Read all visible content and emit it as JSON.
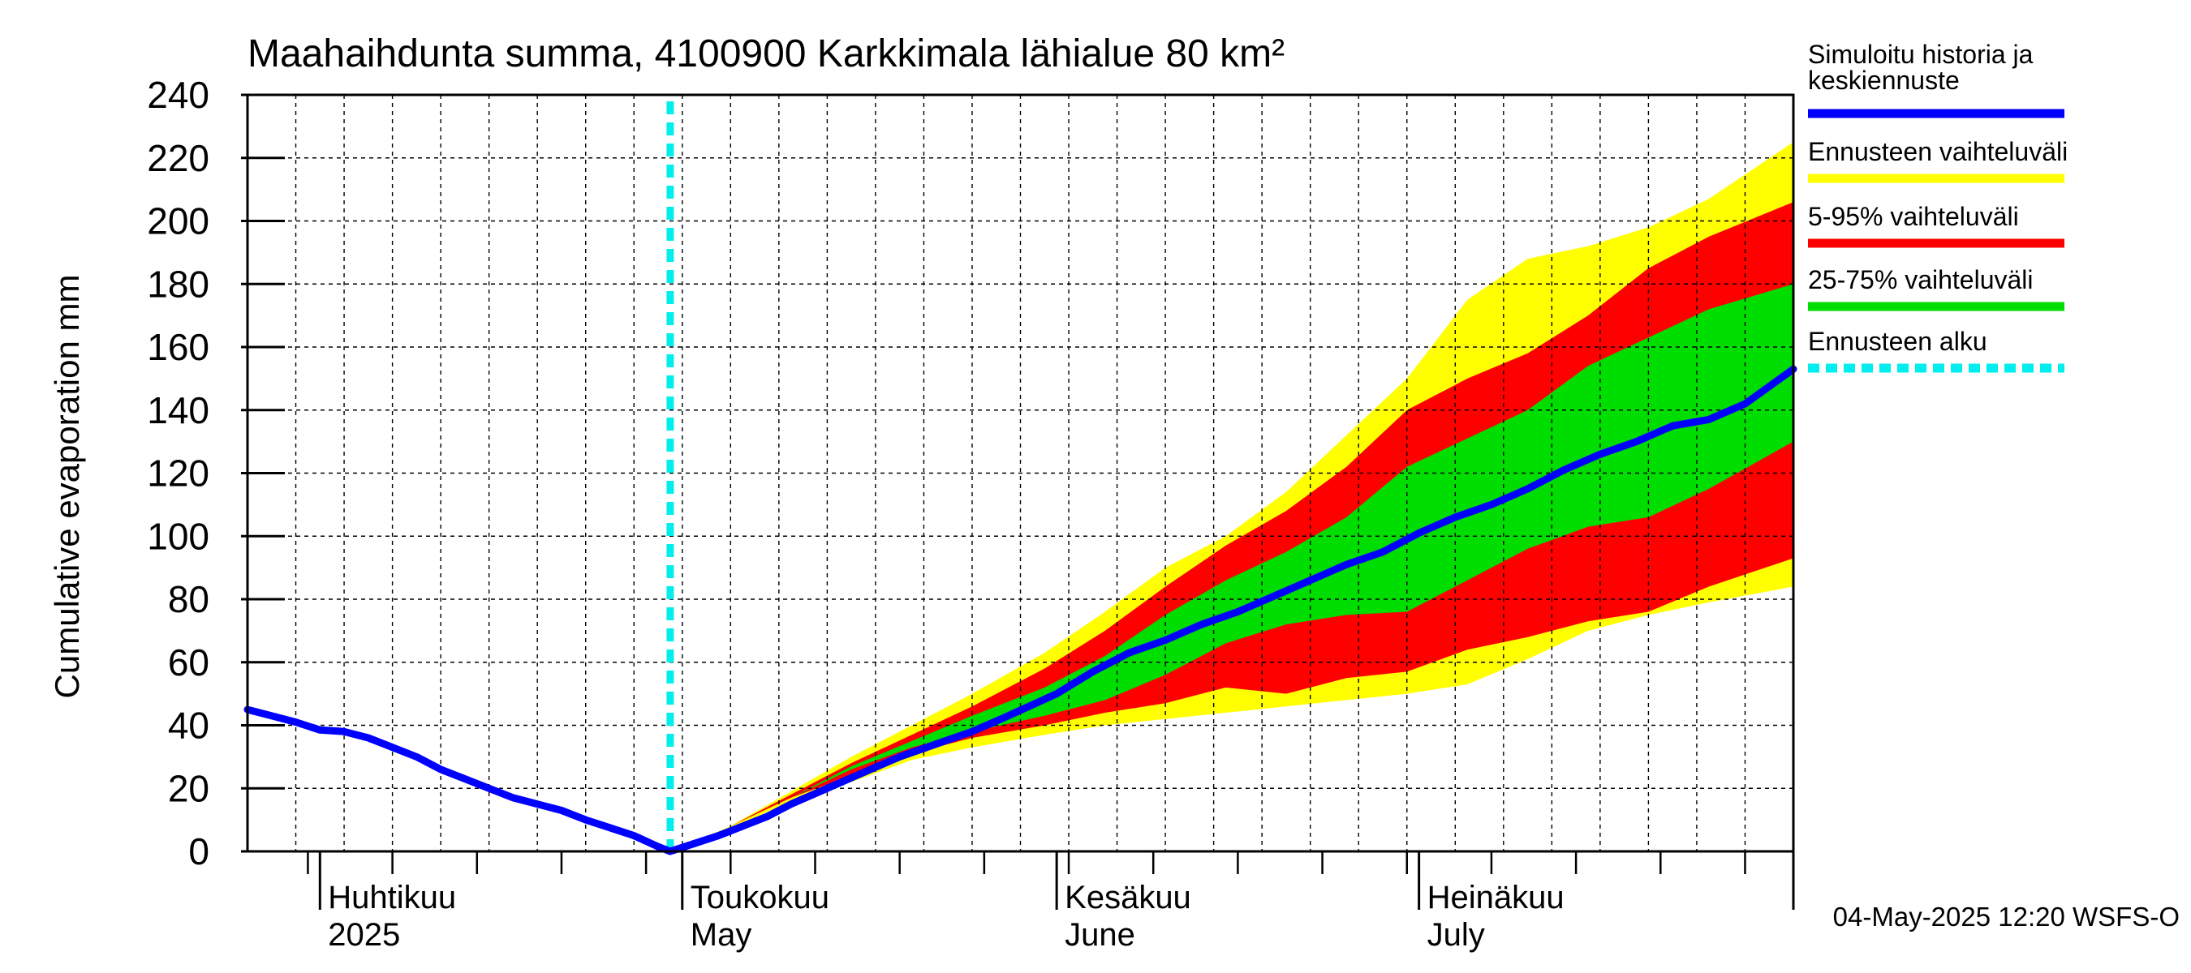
{
  "chart_data": {
    "type": "area",
    "title": "Maahaihdunta summa, 4100900 Karkkimala lähialue 80 km²",
    "ylabel": "Cumulative evaporation   mm",
    "xlabel": "",
    "ylim": [
      0,
      240
    ],
    "yticks": [
      0,
      20,
      40,
      60,
      80,
      100,
      120,
      140,
      160,
      180,
      200,
      220,
      240
    ],
    "xlim": [
      "2025-03-26",
      "2025-08-01"
    ],
    "grid": true,
    "legend_position": "right",
    "month_labels": [
      {
        "date": "2025-04-01",
        "fi": "Huhtikuu",
        "en": "2025"
      },
      {
        "date": "2025-05-01",
        "fi": "Toukokuu",
        "en": "May"
      },
      {
        "date": "2025-06-01",
        "fi": "Kesäkuu",
        "en": "June"
      },
      {
        "date": "2025-07-01",
        "fi": "Heinäkuu",
        "en": "July"
      }
    ],
    "forecast_start": "2025-04-30",
    "footer": "04-May-2025 12:20 WSFS-O",
    "legend": [
      {
        "label": "Simuloitu historia ja\nkeskiennuste",
        "color": "#0000ff",
        "style": "solid"
      },
      {
        "label": "Ennusteen vaihteluväli",
        "color": "#ffff00",
        "style": "solid"
      },
      {
        "label": "5-95% vaihteluväli",
        "color": "#ff0000",
        "style": "solid"
      },
      {
        "label": "25-75% vaihteluväli",
        "color": "#00dd00",
        "style": "solid"
      },
      {
        "label": "Ennusteen alku",
        "color": "#00eeee",
        "style": "dashed"
      }
    ],
    "series": [
      {
        "name": "Simuloitu historia ja keskiennuste",
        "color": "#0000ff",
        "points": [
          [
            "2025-03-26",
            45
          ],
          [
            "2025-03-28",
            43
          ],
          [
            "2025-03-30",
            41
          ],
          [
            "2025-04-01",
            38.5
          ],
          [
            "2025-04-03",
            38
          ],
          [
            "2025-04-05",
            36
          ],
          [
            "2025-04-07",
            33
          ],
          [
            "2025-04-09",
            30
          ],
          [
            "2025-04-11",
            26
          ],
          [
            "2025-04-13",
            23
          ],
          [
            "2025-04-15",
            20
          ],
          [
            "2025-04-17",
            17
          ],
          [
            "2025-04-19",
            15
          ],
          [
            "2025-04-21",
            13
          ],
          [
            "2025-04-23",
            10
          ],
          [
            "2025-04-25",
            7.5
          ],
          [
            "2025-04-27",
            5
          ],
          [
            "2025-04-29",
            1.5
          ],
          [
            "2025-04-30",
            0
          ],
          [
            "2025-05-02",
            2.5
          ],
          [
            "2025-05-04",
            5
          ],
          [
            "2025-05-06",
            8
          ],
          [
            "2025-05-08",
            11
          ],
          [
            "2025-05-10",
            15
          ],
          [
            "2025-05-13",
            20
          ],
          [
            "2025-05-16",
            25
          ],
          [
            "2025-05-19",
            30
          ],
          [
            "2025-05-22",
            34
          ],
          [
            "2025-05-25",
            38
          ],
          [
            "2025-05-28",
            43
          ],
          [
            "2025-06-01",
            50
          ],
          [
            "2025-06-04",
            57
          ],
          [
            "2025-06-07",
            63
          ],
          [
            "2025-06-10",
            67
          ],
          [
            "2025-06-13",
            72
          ],
          [
            "2025-06-16",
            76
          ],
          [
            "2025-06-19",
            81
          ],
          [
            "2025-06-22",
            86
          ],
          [
            "2025-06-25",
            91
          ],
          [
            "2025-06-28",
            95
          ],
          [
            "2025-07-01",
            101
          ],
          [
            "2025-07-04",
            106
          ],
          [
            "2025-07-07",
            110
          ],
          [
            "2025-07-10",
            115
          ],
          [
            "2025-07-13",
            121
          ],
          [
            "2025-07-16",
            126
          ],
          [
            "2025-07-19",
            130
          ],
          [
            "2025-07-22",
            135
          ],
          [
            "2025-07-25",
            137
          ],
          [
            "2025-07-28",
            142
          ],
          [
            "2025-08-01",
            153
          ]
        ]
      }
    ],
    "bands": [
      {
        "name": "Ennusteen vaihteluväli",
        "color": "#ffff00",
        "points": [
          [
            "2025-04-30",
            0,
            0
          ],
          [
            "2025-05-05",
            7,
            8
          ],
          [
            "2025-05-10",
            16,
            19
          ],
          [
            "2025-05-15",
            22,
            30
          ],
          [
            "2025-05-20",
            29,
            40
          ],
          [
            "2025-05-25",
            33,
            50
          ],
          [
            "2025-05-31",
            37,
            63
          ],
          [
            "2025-06-05",
            40,
            76
          ],
          [
            "2025-06-10",
            42,
            90
          ],
          [
            "2025-06-15",
            44,
            100
          ],
          [
            "2025-06-20",
            46,
            114
          ],
          [
            "2025-06-25",
            48,
            132
          ],
          [
            "2025-06-30",
            50,
            150
          ],
          [
            "2025-07-05",
            53,
            175
          ],
          [
            "2025-07-10",
            61,
            188
          ],
          [
            "2025-07-15",
            70,
            192
          ],
          [
            "2025-07-20",
            75,
            198
          ],
          [
            "2025-07-25",
            79,
            207
          ],
          [
            "2025-08-01",
            84,
            225
          ]
        ]
      },
      {
        "name": "5-95% vaihteluväli",
        "color": "#ff0000",
        "points": [
          [
            "2025-04-30",
            0,
            0
          ],
          [
            "2025-05-05",
            8,
            8
          ],
          [
            "2025-05-10",
            17,
            18
          ],
          [
            "2025-05-15",
            24,
            28
          ],
          [
            "2025-05-20",
            31,
            37
          ],
          [
            "2025-05-25",
            36,
            46
          ],
          [
            "2025-05-31",
            40,
            58
          ],
          [
            "2025-06-05",
            44,
            70
          ],
          [
            "2025-06-10",
            47,
            84
          ],
          [
            "2025-06-15",
            52,
            97
          ],
          [
            "2025-06-20",
            50,
            108
          ],
          [
            "2025-06-25",
            55,
            122
          ],
          [
            "2025-06-30",
            57,
            140
          ],
          [
            "2025-07-05",
            64,
            150
          ],
          [
            "2025-07-10",
            68,
            158
          ],
          [
            "2025-07-15",
            73,
            170
          ],
          [
            "2025-07-20",
            76,
            185
          ],
          [
            "2025-07-25",
            84,
            195
          ],
          [
            "2025-08-01",
            93,
            206
          ]
        ]
      },
      {
        "name": "25-75% vaihteluväli",
        "color": "#00dd00",
        "points": [
          [
            "2025-04-30",
            0,
            0
          ],
          [
            "2025-05-05",
            8,
            8
          ],
          [
            "2025-05-10",
            17,
            17
          ],
          [
            "2025-05-15",
            26,
            27
          ],
          [
            "2025-05-20",
            33,
            35
          ],
          [
            "2025-05-25",
            38,
            43
          ],
          [
            "2025-05-31",
            43,
            52
          ],
          [
            "2025-06-05",
            48,
            62
          ],
          [
            "2025-06-10",
            56,
            75
          ],
          [
            "2025-06-15",
            66,
            86
          ],
          [
            "2025-06-20",
            72,
            95
          ],
          [
            "2025-06-25",
            75,
            106
          ],
          [
            "2025-06-30",
            76,
            122
          ],
          [
            "2025-07-05",
            86,
            131
          ],
          [
            "2025-07-10",
            96,
            140
          ],
          [
            "2025-07-15",
            103,
            154
          ],
          [
            "2025-07-20",
            106,
            163
          ],
          [
            "2025-07-25",
            115,
            172
          ],
          [
            "2025-08-01",
            130,
            180
          ]
        ]
      }
    ]
  }
}
